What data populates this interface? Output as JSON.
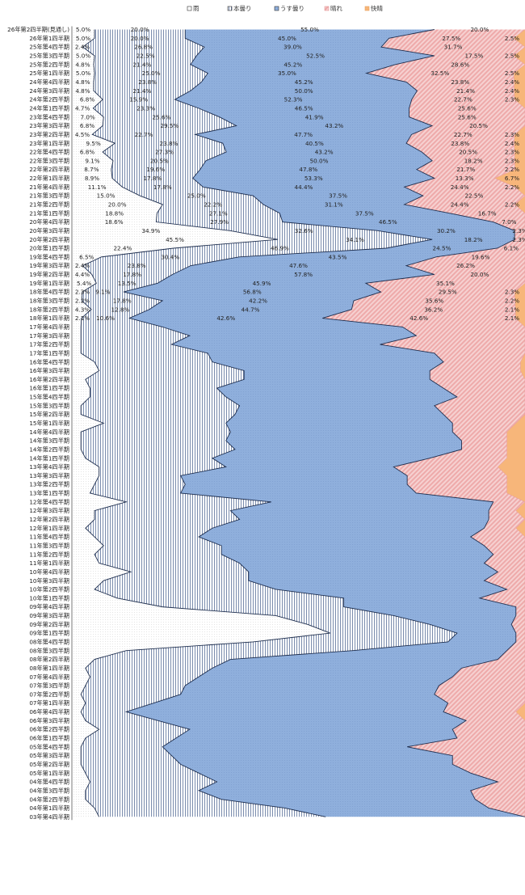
{
  "chart_data": {
    "type": "area",
    "orientation": "horizontal",
    "stacked": "percent",
    "legend": "top-center",
    "grid": false,
    "series_names": [
      "雨",
      "本曇り",
      "うす曇り",
      "晴れ",
      "快晴"
    ],
    "colors": {
      "rain": "#ffffff",
      "heavy_cloud": "#ffffff",
      "light_cloud": "#8fafdc",
      "sunny": "#f2b6b6",
      "clear": "#f7b67a",
      "outline": "#1f2f4f"
    },
    "labeled_categories": [
      "26年第2四半期(見通し)",
      "26年第1四半期",
      "25年第4四半期",
      "25年第3四半期",
      "25年第2四半期",
      "25年第1四半期",
      "24年第4四半期",
      "24年第3四半期",
      "24年第2四半期",
      "24年第1四半期",
      "23年第4四半期",
      "23年第3四半期",
      "23年第2四半期",
      "23年第1四半期",
      "22年第4四半期",
      "22年第3四半期",
      "22年第2四半期",
      "22年第1四半期",
      "21年第4四半期",
      "21年第3四半期",
      "21年第2四半期",
      "21年第1四半期",
      "20年第4四半期",
      "20年第3四半期",
      "20年第2四半期",
      "20年第1四半期",
      "19年第4四半期",
      "19年第3四半期",
      "19年第2四半期",
      "19年第1四半期",
      "18年第4四半期",
      "18年第3四半期",
      "18年第2四半期",
      "18年第1四半期"
    ],
    "labeled_values": [
      [
        5.0,
        20.0,
        55.0,
        20.0,
        0.0
      ],
      [
        5.0,
        20.0,
        45.0,
        27.5,
        2.5
      ],
      [
        2.4,
        26.8,
        39.0,
        31.7,
        0.0
      ],
      [
        5.0,
        22.5,
        52.5,
        17.5,
        2.5
      ],
      [
        4.8,
        21.4,
        45.2,
        28.6,
        0.0
      ],
      [
        5.0,
        25.0,
        35.0,
        32.5,
        2.5
      ],
      [
        4.8,
        23.8,
        45.2,
        23.8,
        2.4
      ],
      [
        4.8,
        21.4,
        50.0,
        21.4,
        2.4
      ],
      [
        6.8,
        15.9,
        52.3,
        22.7,
        2.3
      ],
      [
        4.7,
        23.3,
        46.5,
        25.6,
        0.0
      ],
      [
        7.0,
        25.6,
        41.9,
        25.6,
        0.0
      ],
      [
        6.8,
        29.5,
        43.2,
        20.5,
        0.0
      ],
      [
        4.5,
        22.7,
        47.7,
        22.7,
        2.3
      ],
      [
        9.5,
        23.8,
        40.5,
        23.8,
        2.4
      ],
      [
        6.8,
        27.3,
        43.2,
        20.5,
        2.3
      ],
      [
        9.1,
        20.5,
        50.0,
        18.2,
        2.3
      ],
      [
        8.7,
        19.6,
        47.8,
        21.7,
        2.2
      ],
      [
        8.9,
        17.8,
        53.3,
        13.3,
        6.7
      ],
      [
        11.1,
        17.8,
        44.4,
        24.4,
        2.2
      ],
      [
        15.0,
        25.0,
        37.5,
        22.5,
        0.0
      ],
      [
        20.0,
        22.2,
        31.1,
        24.4,
        2.2
      ],
      [
        18.8,
        27.1,
        37.5,
        16.7,
        0.0
      ],
      [
        18.6,
        27.9,
        46.5,
        7.0,
        0.0
      ],
      [
        34.9,
        32.6,
        30.2,
        2.3,
        0.0
      ],
      [
        45.5,
        34.1,
        18.2,
        2.3,
        0.0
      ],
      [
        22.4,
        46.9,
        24.5,
        6.1,
        0.0
      ],
      [
        6.5,
        30.4,
        43.5,
        19.6,
        0.0
      ],
      [
        2.4,
        23.8,
        47.6,
        26.2,
        0.0
      ],
      [
        4.4,
        17.8,
        57.8,
        20.0,
        0.0
      ],
      [
        5.4,
        13.5,
        45.9,
        35.1,
        0.0
      ],
      [
        2.3,
        9.1,
        56.8,
        29.5,
        2.3
      ],
      [
        2.2,
        17.8,
        42.2,
        35.6,
        2.2
      ],
      [
        4.3,
        12.8,
        44.7,
        36.2,
        2.1
      ],
      [
        2.1,
        10.6,
        42.6,
        42.6,
        2.1
      ]
    ],
    "value_labels": [
      [
        "5.0%",
        "20.0%",
        "55.0%",
        "20.0%",
        ""
      ],
      [
        "5.0%",
        "20.0%",
        "45.0%",
        "27.5%",
        "2.5%"
      ],
      [
        "2.4%",
        "26.8%",
        "39.0%",
        "31.7%",
        ""
      ],
      [
        "5.0%",
        "22.5%",
        "52.5%",
        "17.5%",
        "2.5%"
      ],
      [
        "4.8%",
        "21.4%",
        "45.2%",
        "28.6%",
        ""
      ],
      [
        "5.0%",
        "25.0%",
        "35.0%",
        "32.5%",
        "2.5%"
      ],
      [
        "4.8%",
        "23.8%",
        "45.2%",
        "23.8%",
        "2.4%"
      ],
      [
        "4.8%",
        "21.4%",
        "50.0%",
        "21.4%",
        "2.4%"
      ],
      [
        "6.8%",
        "15.9%",
        "52.3%",
        "22.7%",
        "2.3%"
      ],
      [
        "4.7%",
        "23.3%",
        "46.5%",
        "25.6%",
        ""
      ],
      [
        "7.0%",
        "25.6%",
        "41.9%",
        "25.6%",
        ""
      ],
      [
        "6.8%",
        "29.5%",
        "43.2%",
        "20.5%",
        ""
      ],
      [
        "4.5%",
        "22.7%",
        "47.7%",
        "22.7%",
        "2.3%"
      ],
      [
        "9.5%",
        "23.8%",
        "40.5%",
        "23.8%",
        "2.4%"
      ],
      [
        "6.8%",
        "27.3%",
        "43.2%",
        "20.5%",
        "2.3%"
      ],
      [
        "9.1%",
        "20.5%",
        "50.0%",
        "18.2%",
        "2.3%"
      ],
      [
        "8.7%",
        "19.6%",
        "47.8%",
        "21.7%",
        "2.2%"
      ],
      [
        "8.9%",
        "17.8%",
        "53.3%",
        "13.3%",
        "6.7%"
      ],
      [
        "11.1%",
        "17.8%",
        "44.4%",
        "24.4%",
        "2.2%"
      ],
      [
        "15.0%",
        "25.0%",
        "37.5%",
        "22.5%",
        ""
      ],
      [
        "20.0%",
        "22.2%",
        "31.1%",
        "24.4%",
        "2.2%"
      ],
      [
        "18.8%",
        "27.1%",
        "37.5%",
        "16.7%",
        ""
      ],
      [
        "18.6%",
        "27.9%",
        "46.5%",
        "7.0%",
        ""
      ],
      [
        "34.9%",
        "32.6%",
        "30.2%",
        "2.3%",
        ""
      ],
      [
        "45.5%",
        "34.1%",
        "18.2%",
        "2.3%",
        ""
      ],
      [
        "22.4%",
        "46.9%",
        "24.5%",
        "6.1%",
        ""
      ],
      [
        "6.5%",
        "30.4%",
        "43.5%",
        "19.6%",
        ""
      ],
      [
        "2.4%",
        "23.8%",
        "47.6%",
        "26.2%",
        ""
      ],
      [
        "4.4%",
        "17.8%",
        "57.8%",
        "20.0%",
        ""
      ],
      [
        "5.4%",
        "13.5%",
        "45.9%",
        "35.1%",
        ""
      ],
      [
        "2.3%",
        "9.1%",
        "56.8%",
        "29.5%",
        "2.3%"
      ],
      [
        "2.2%",
        "17.8%",
        "42.2%",
        "35.6%",
        "2.2%"
      ],
      [
        "4.3%",
        "12.8%",
        "44.7%",
        "36.2%",
        "2.1%"
      ],
      [
        "2.1%",
        "10.6%",
        "42.6%",
        "42.6%",
        "2.1%"
      ]
    ],
    "unlabeled_categories": [
      "17年第4四半期",
      "17年第3四半期",
      "17年第2四半期",
      "17年第1四半期",
      "16年第4四半期",
      "16年第3四半期",
      "16年第2四半期",
      "16年第1四半期",
      "15年第4四半期",
      "15年第3四半期",
      "15年第2四半期",
      "15年第1四半期",
      "14年第4四半期",
      "14年第3四半期",
      "14年第2四半期",
      "14年第1四半期",
      "13年第4四半期",
      "13年第3四半期",
      "13年第2四半期",
      "13年第1四半期",
      "12年第4四半期",
      "12年第3四半期",
      "12年第2四半期",
      "12年第1四半期",
      "11年第4四半期",
      "11年第3四半期",
      "11年第2四半期",
      "11年第1四半期",
      "10年第4四半期",
      "10年第3四半期",
      "10年第2四半期",
      "10年第1四半期",
      "09年第4四半期",
      "09年第3四半期",
      "09年第2四半期",
      "09年第1四半期",
      "08年第4四半期",
      "08年第3四半期",
      "08年第2四半期",
      "08年第1四半期",
      "07年第4四半期",
      "07年第3四半期",
      "07年第2四半期",
      "07年第1四半期",
      "06年第4四半期",
      "06年第3四半期",
      "06年第2四半期",
      "06年第1四半期",
      "05年第4四半期",
      "05年第3四半期",
      "05年第2四半期",
      "05年第1四半期",
      "04年第4四半期",
      "04年第3四半期",
      "04年第2四半期",
      "04年第1四半期",
      "03年第4四半期"
    ],
    "unlabeled_values": [
      [
        2.0,
        18.0,
        53.0,
        27.0,
        0.0
      ],
      [
        2.0,
        24.0,
        50.0,
        24.0,
        0.0
      ],
      [
        2.0,
        20.0,
        46.0,
        32.0,
        0.0
      ],
      [
        2.0,
        28.0,
        50.0,
        20.0,
        0.0
      ],
      [
        5.0,
        26.0,
        51.0,
        17.0,
        1.0
      ],
      [
        6.0,
        32.0,
        41.0,
        20.0,
        1.0
      ],
      [
        3.0,
        35.0,
        41.0,
        21.0,
        0.0
      ],
      [
        4.0,
        28.0,
        50.0,
        18.0,
        0.0
      ],
      [
        4.0,
        30.0,
        51.0,
        15.0,
        0.0
      ],
      [
        2.0,
        35.0,
        43.0,
        20.0,
        0.0
      ],
      [
        2.0,
        34.0,
        46.0,
        18.0,
        0.0
      ],
      [
        7.0,
        27.0,
        50.0,
        14.0,
        2.0
      ],
      [
        2.0,
        33.0,
        49.0,
        12.0,
        4.0
      ],
      [
        2.0,
        32.0,
        52.0,
        10.0,
        4.0
      ],
      [
        2.0,
        34.0,
        50.0,
        10.0,
        4.0
      ],
      [
        3.0,
        28.0,
        48.0,
        17.0,
        4.0
      ],
      [
        6.0,
        28.0,
        37.0,
        23.0,
        6.0
      ],
      [
        6.0,
        18.0,
        50.0,
        22.0,
        4.0
      ],
      [
        5.0,
        20.0,
        49.0,
        22.0,
        4.0
      ],
      [
        4.0,
        20.0,
        52.0,
        20.0,
        4.0
      ],
      [
        12.0,
        32.0,
        49.0,
        7.0,
        0.0
      ],
      [
        5.0,
        30.0,
        57.0,
        6.0,
        2.0
      ],
      [
        5.0,
        32.0,
        55.0,
        8.0,
        0.0
      ],
      [
        3.0,
        28.0,
        60.0,
        7.0,
        2.0
      ],
      [
        5.0,
        23.0,
        60.0,
        12.0,
        0.0
      ],
      [
        7.0,
        26.0,
        58.0,
        9.0,
        0.0
      ],
      [
        5.0,
        28.0,
        60.0,
        7.0,
        0.0
      ],
      [
        6.0,
        31.0,
        54.0,
        9.0,
        0.0
      ],
      [
        13.0,
        26.0,
        55.0,
        6.0,
        0.0
      ],
      [
        7.0,
        32.0,
        52.0,
        9.0,
        0.0
      ],
      [
        5.0,
        40.0,
        51.0,
        4.0,
        0.0
      ],
      [
        10.0,
        50.0,
        30.0,
        10.0,
        0.0
      ],
      [
        20.0,
        40.0,
        38.0,
        2.0,
        0.0
      ],
      [
        45.0,
        26.0,
        27.0,
        2.0,
        0.0
      ],
      [
        52.0,
        27.0,
        18.0,
        3.0,
        0.0
      ],
      [
        57.0,
        28.0,
        13.0,
        2.0,
        0.0
      ],
      [
        40.0,
        43.0,
        15.0,
        2.0,
        0.0
      ],
      [
        12.0,
        50.0,
        34.0,
        4.0,
        0.0
      ],
      [
        5.0,
        30.0,
        59.0,
        6.0,
        0.0
      ],
      [
        3.0,
        28.0,
        55.0,
        14.0,
        0.0
      ],
      [
        4.0,
        24.0,
        56.0,
        16.0,
        0.0
      ],
      [
        3.0,
        22.0,
        56.0,
        19.0,
        0.0
      ],
      [
        2.0,
        22.0,
        56.0,
        20.0,
        0.0
      ],
      [
        3.0,
        15.0,
        65.0,
        17.0,
        0.0
      ],
      [
        2.0,
        10.0,
        70.0,
        16.0,
        2.0
      ],
      [
        3.0,
        16.0,
        68.0,
        13.0,
        0.0
      ],
      [
        6.0,
        20.0,
        58.0,
        16.0,
        0.0
      ],
      [
        3.0,
        20.0,
        62.0,
        15.0,
        0.0
      ],
      [
        2.0,
        18.0,
        54.0,
        26.0,
        0.0
      ],
      [
        2.0,
        20.0,
        62.0,
        16.0,
        0.0
      ],
      [
        2.0,
        22.0,
        60.0,
        16.0,
        0.0
      ],
      [
        3.0,
        25.0,
        60.0,
        12.0,
        0.0
      ],
      [
        4.0,
        28.0,
        62.0,
        6.0,
        0.0
      ],
      [
        3.0,
        25.0,
        60.0,
        12.0,
        0.0
      ],
      [
        3.0,
        30.0,
        56.0,
        11.0,
        0.0
      ],
      [
        5.0,
        42.0,
        45.0,
        8.0,
        0.0
      ],
      [
        6.0,
        50.0,
        44.0,
        0.0,
        0.0
      ]
    ]
  }
}
